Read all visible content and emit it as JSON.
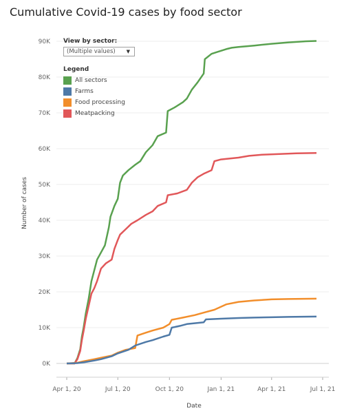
{
  "title": "Cumulative Covid-19 cases by food sector",
  "filter": {
    "label": "View by sector:",
    "value": "(Multiple values)",
    "icon": "chevron-down-icon"
  },
  "legend": {
    "title": "Legend",
    "items": [
      {
        "name": "All sectors",
        "color": "#59a14f"
      },
      {
        "name": "Farms",
        "color": "#4e79a7"
      },
      {
        "name": "Food processing",
        "color": "#f28e2b"
      },
      {
        "name": "Meatpacking",
        "color": "#e15759"
      }
    ]
  },
  "chart_data": {
    "type": "line",
    "xlabel": "Date",
    "ylabel": "Number of cases",
    "ylim": [
      0,
      90000
    ],
    "yticks": [
      {
        "value": 0,
        "label": "0K"
      },
      {
        "value": 10000,
        "label": "10K"
      },
      {
        "value": 20000,
        "label": "20K"
      },
      {
        "value": 30000,
        "label": "30K"
      },
      {
        "value": 40000,
        "label": "40K"
      },
      {
        "value": 50000,
        "label": "50K"
      },
      {
        "value": 60000,
        "label": "60K"
      },
      {
        "value": 70000,
        "label": "70K"
      },
      {
        "value": 80000,
        "label": "80K"
      },
      {
        "value": 90000,
        "label": "90K"
      }
    ],
    "xlim": [
      "2020-04-01",
      "2021-07-01"
    ],
    "xticks": [
      {
        "value": "2020-04-01",
        "label": "Apr 1, 20"
      },
      {
        "value": "2020-07-01",
        "label": "Jul 1, 20"
      },
      {
        "value": "2020-10-01",
        "label": "Oct 1, 20"
      },
      {
        "value": "2021-01-01",
        "label": "Jan 1, 21"
      },
      {
        "value": "2021-04-01",
        "label": "Apr 1, 21"
      },
      {
        "value": "2021-07-01",
        "label": "Jul 1, 21"
      }
    ],
    "grid": true,
    "series": [
      {
        "name": "All sectors",
        "color": "#59a14f",
        "points": [
          [
            "2020-04-01",
            0
          ],
          [
            "2020-04-15",
            0
          ],
          [
            "2020-04-20",
            1500
          ],
          [
            "2020-04-25",
            4000
          ],
          [
            "2020-04-28",
            7500
          ],
          [
            "2020-05-01",
            10000
          ],
          [
            "2020-05-05",
            14000
          ],
          [
            "2020-05-10",
            18000
          ],
          [
            "2020-05-15",
            23000
          ],
          [
            "2020-05-20",
            26000
          ],
          [
            "2020-05-25",
            29000
          ],
          [
            "2020-06-01",
            31000
          ],
          [
            "2020-06-08",
            33000
          ],
          [
            "2020-06-15",
            38000
          ],
          [
            "2020-06-18",
            41000
          ],
          [
            "2020-06-25",
            44000
          ],
          [
            "2020-07-01",
            46000
          ],
          [
            "2020-07-05",
            50500
          ],
          [
            "2020-07-10",
            52500
          ],
          [
            "2020-07-20",
            54000
          ],
          [
            "2020-08-01",
            55500
          ],
          [
            "2020-08-10",
            56500
          ],
          [
            "2020-08-20",
            59000
          ],
          [
            "2020-09-01",
            61000
          ],
          [
            "2020-09-10",
            63500
          ],
          [
            "2020-09-25",
            64500
          ],
          [
            "2020-09-28",
            70500
          ],
          [
            "2020-10-10",
            71500
          ],
          [
            "2020-10-25",
            73000
          ],
          [
            "2020-11-01",
            74000
          ],
          [
            "2020-11-10",
            76500
          ],
          [
            "2020-11-20",
            78500
          ],
          [
            "2020-12-01",
            81000
          ],
          [
            "2020-12-03",
            85000
          ],
          [
            "2020-12-15",
            86500
          ],
          [
            "2020-12-25",
            87000
          ],
          [
            "2021-01-10",
            87800
          ],
          [
            "2021-01-20",
            88200
          ],
          [
            "2021-02-01",
            88400
          ],
          [
            "2021-03-01",
            88800
          ],
          [
            "2021-04-01",
            89300
          ],
          [
            "2021-05-01",
            89700
          ],
          [
            "2021-06-01",
            90000
          ],
          [
            "2021-06-20",
            90100
          ]
        ]
      },
      {
        "name": "Meatpacking",
        "color": "#e15759",
        "points": [
          [
            "2020-04-01",
            0
          ],
          [
            "2020-04-15",
            0
          ],
          [
            "2020-04-20",
            1200
          ],
          [
            "2020-04-25",
            3500
          ],
          [
            "2020-04-28",
            6500
          ],
          [
            "2020-05-01",
            9000
          ],
          [
            "2020-05-05",
            12500
          ],
          [
            "2020-05-10",
            16000
          ],
          [
            "2020-05-15",
            19500
          ],
          [
            "2020-05-20",
            21000
          ],
          [
            "2020-05-25",
            23000
          ],
          [
            "2020-06-01",
            26500
          ],
          [
            "2020-06-10",
            28000
          ],
          [
            "2020-06-20",
            29000
          ],
          [
            "2020-06-25",
            32000
          ],
          [
            "2020-07-01",
            34500
          ],
          [
            "2020-07-05",
            36000
          ],
          [
            "2020-07-15",
            37500
          ],
          [
            "2020-07-25",
            39000
          ],
          [
            "2020-08-05",
            40000
          ],
          [
            "2020-08-20",
            41500
          ],
          [
            "2020-09-01",
            42500
          ],
          [
            "2020-09-10",
            44000
          ],
          [
            "2020-09-25",
            45000
          ],
          [
            "2020-09-28",
            47000
          ],
          [
            "2020-10-15",
            47500
          ],
          [
            "2020-11-01",
            48500
          ],
          [
            "2020-11-10",
            50500
          ],
          [
            "2020-11-20",
            52000
          ],
          [
            "2020-12-01",
            53000
          ],
          [
            "2020-12-15",
            54000
          ],
          [
            "2020-12-20",
            56500
          ],
          [
            "2021-01-01",
            57000
          ],
          [
            "2021-02-01",
            57500
          ],
          [
            "2021-02-20",
            58000
          ],
          [
            "2021-03-15",
            58300
          ],
          [
            "2021-04-15",
            58500
          ],
          [
            "2021-05-15",
            58700
          ],
          [
            "2021-06-20",
            58800
          ]
        ]
      },
      {
        "name": "Food processing",
        "color": "#f28e2b",
        "points": [
          [
            "2020-04-01",
            0
          ],
          [
            "2020-04-20",
            200
          ],
          [
            "2020-05-01",
            600
          ],
          [
            "2020-05-20",
            1200
          ],
          [
            "2020-06-01",
            1600
          ],
          [
            "2020-06-20",
            2200
          ],
          [
            "2020-07-01",
            3000
          ],
          [
            "2020-07-15",
            3800
          ],
          [
            "2020-08-01",
            4300
          ],
          [
            "2020-08-05",
            7800
          ],
          [
            "2020-08-20",
            8600
          ],
          [
            "2020-09-01",
            9200
          ],
          [
            "2020-09-20",
            10000
          ],
          [
            "2020-10-01",
            11000
          ],
          [
            "2020-10-05",
            12200
          ],
          [
            "2020-10-25",
            12800
          ],
          [
            "2020-11-15",
            13500
          ],
          [
            "2020-12-01",
            14200
          ],
          [
            "2020-12-20",
            15000
          ],
          [
            "2021-01-10",
            16500
          ],
          [
            "2021-02-01",
            17200
          ],
          [
            "2021-03-01",
            17600
          ],
          [
            "2021-04-01",
            17900
          ],
          [
            "2021-05-01",
            18000
          ],
          [
            "2021-06-20",
            18100
          ]
        ]
      },
      {
        "name": "Farms",
        "color": "#4e79a7",
        "points": [
          [
            "2020-04-01",
            0
          ],
          [
            "2020-04-20",
            100
          ],
          [
            "2020-05-01",
            300
          ],
          [
            "2020-05-20",
            800
          ],
          [
            "2020-06-01",
            1200
          ],
          [
            "2020-06-20",
            2000
          ],
          [
            "2020-07-01",
            2800
          ],
          [
            "2020-07-20",
            3800
          ],
          [
            "2020-08-01",
            5000
          ],
          [
            "2020-08-20",
            6000
          ],
          [
            "2020-09-01",
            6500
          ],
          [
            "2020-09-20",
            7500
          ],
          [
            "2020-10-01",
            8000
          ],
          [
            "2020-10-05",
            10000
          ],
          [
            "2020-10-20",
            10500
          ],
          [
            "2020-11-01",
            11000
          ],
          [
            "2020-12-01",
            11500
          ],
          [
            "2020-12-05",
            12300
          ],
          [
            "2021-01-01",
            12500
          ],
          [
            "2021-02-01",
            12700
          ],
          [
            "2021-03-01",
            12800
          ],
          [
            "2021-04-01",
            12900
          ],
          [
            "2021-05-01",
            13000
          ],
          [
            "2021-06-20",
            13100
          ]
        ]
      }
    ]
  }
}
